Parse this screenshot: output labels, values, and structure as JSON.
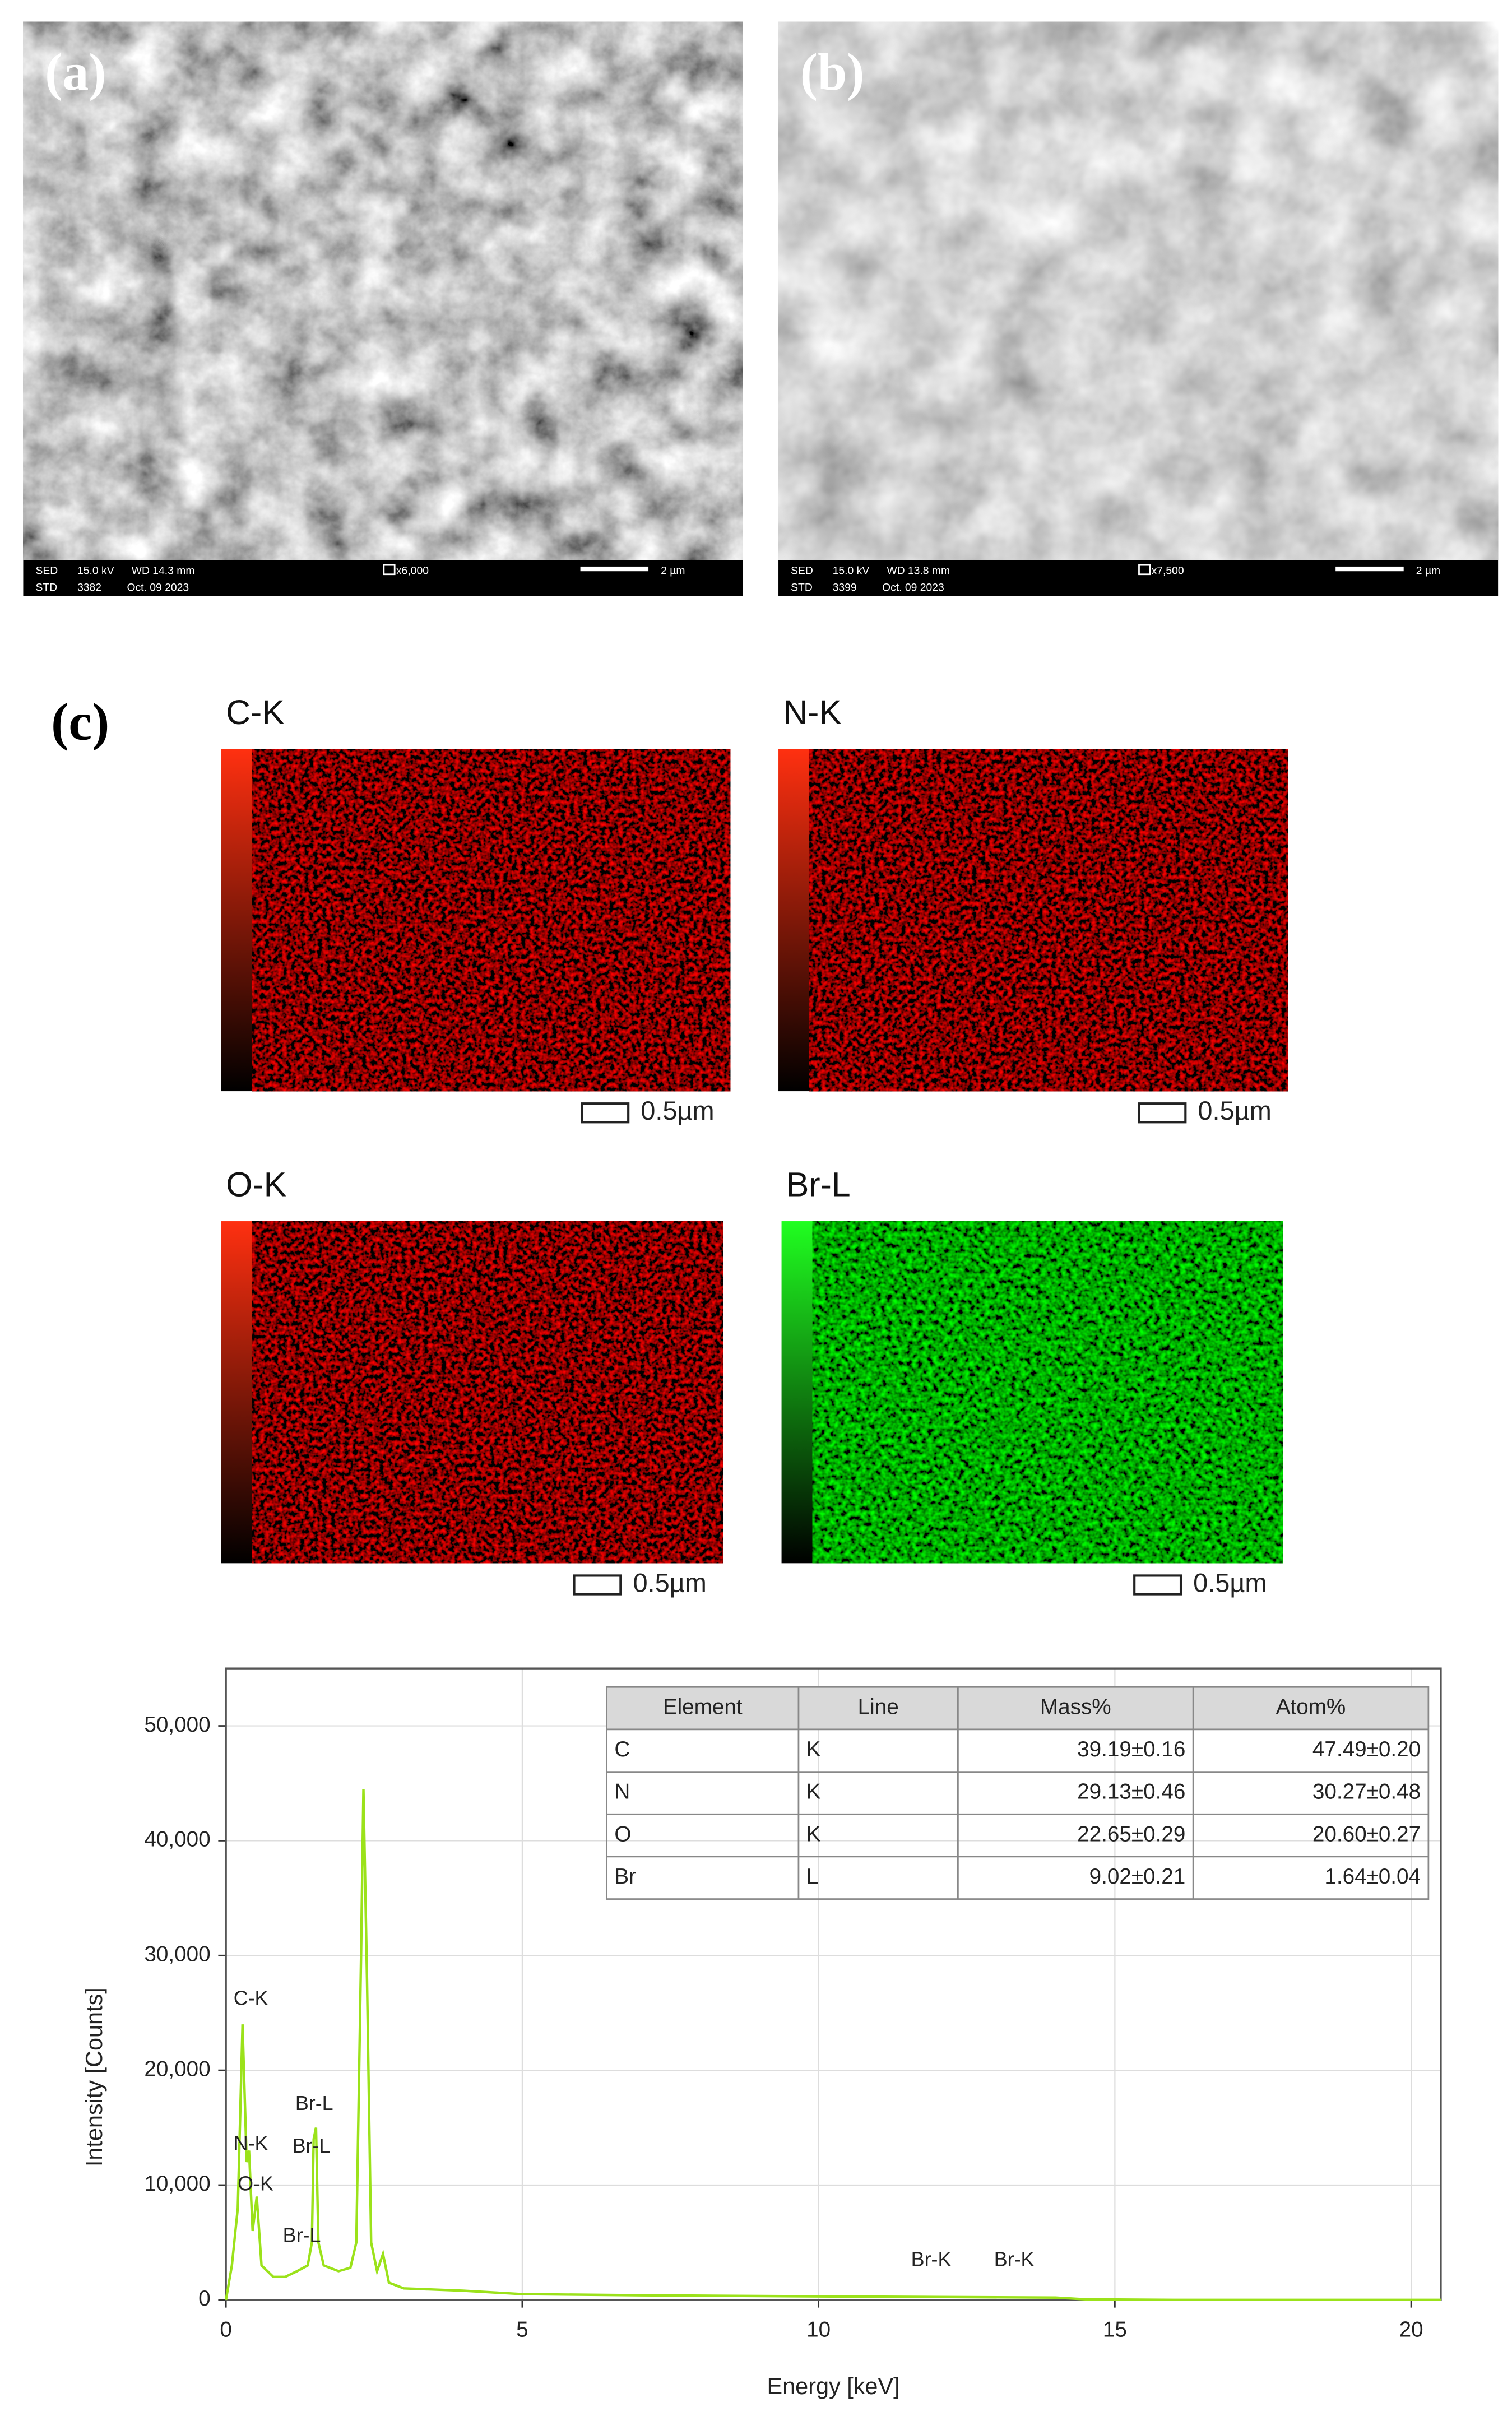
{
  "sem_panels": [
    {
      "label": "(a)",
      "info": [
        "SED",
        "15.0 kV",
        "WD 14.3 mm",
        "STD",
        "3382",
        "Oct. 09 2023"
      ],
      "magnification": "x6,000",
      "scale": "2 µm"
    },
    {
      "label": "(b)",
      "info": [
        "SED",
        "15.0 kV",
        "WD 13.8 mm",
        "STD",
        "3399",
        "Oct. 09 2023"
      ],
      "magnification": "x7,500",
      "scale": "2 µm"
    }
  ],
  "maps": {
    "label": "(c)",
    "items": [
      {
        "element": "C-K",
        "scale": "0.5µm",
        "color": "red"
      },
      {
        "element": "N-K",
        "scale": "0.5µm",
        "color": "red"
      },
      {
        "element": "O-K",
        "scale": "0.5µm",
        "color": "red"
      },
      {
        "element": "Br-L",
        "scale": "0.5µm",
        "color": "green"
      }
    ]
  },
  "eds_table": {
    "columns": [
      "Element",
      "Line",
      "Mass%",
      "Atom%"
    ],
    "rows": [
      [
        "C",
        "K",
        "39.19±0.16",
        "47.49±0.20"
      ],
      [
        "N",
        "K",
        "29.13±0.46",
        "30.27±0.48"
      ],
      [
        "O",
        "K",
        "22.65±0.29",
        "20.60±0.27"
      ],
      [
        "Br",
        "L",
        "9.02±0.21",
        "1.64±0.04"
      ]
    ]
  },
  "chart_data": {
    "type": "line",
    "x_label": "Energy [keV]",
    "y_label": "Intensity [Counts]",
    "xlim": [
      0,
      20.5
    ],
    "ylim": [
      0,
      55000
    ],
    "xticks": [
      0,
      5,
      10,
      15,
      20
    ],
    "yticks": [
      0,
      {
        "value": 10000,
        "label": "10,000"
      },
      {
        "value": 20000,
        "label": "20,000"
      },
      {
        "value": 30000,
        "label": "30,000"
      },
      {
        "value": 40000,
        "label": "40,000"
      },
      {
        "value": 50000,
        "label": "50,000"
      }
    ],
    "grid": true,
    "x": [
      0,
      0.1,
      0.2,
      0.28,
      0.35,
      0.39,
      0.45,
      0.52,
      0.6,
      0.8,
      1.0,
      1.2,
      1.38,
      1.45,
      1.48,
      1.52,
      1.56,
      1.65,
      1.9,
      2.1,
      2.2,
      2.28,
      2.32,
      2.38,
      2.45,
      2.55,
      2.65,
      2.75,
      3.0,
      4,
      5,
      7,
      10,
      12,
      14,
      14.5,
      16,
      20.5
    ],
    "series": [
      {
        "color": "#9be21a",
        "values": [
          0,
          3000,
          8000,
          24000,
          12000,
          13000,
          6000,
          9000,
          3000,
          2000,
          2000,
          2500,
          3000,
          5000,
          14000,
          15000,
          5000,
          3000,
          2500,
          2800,
          5000,
          30000,
          44500,
          28000,
          5000,
          2500,
          4000,
          1500,
          1000,
          800,
          500,
          400,
          300,
          250,
          200,
          50,
          0,
          0
        ]
      }
    ],
    "annotations": [
      {
        "text": "C-K",
        "x": 0.42,
        "y": 26150
      },
      {
        "text": "N-K",
        "x": 0.42,
        "y": 13500
      },
      {
        "text": "O-K",
        "x": 0.5,
        "y": 10000
      },
      {
        "text": "Br-L",
        "x": 1.28,
        "y": 5500
      },
      {
        "text": "Br-L",
        "x": 1.49,
        "y": 17000
      },
      {
        "text": "Br-L",
        "x": 1.44,
        "y": 13300
      },
      {
        "text": "Br-K",
        "x": 11.9,
        "y": 3400
      },
      {
        "text": "Br-K",
        "x": 13.3,
        "y": 3400
      }
    ]
  }
}
